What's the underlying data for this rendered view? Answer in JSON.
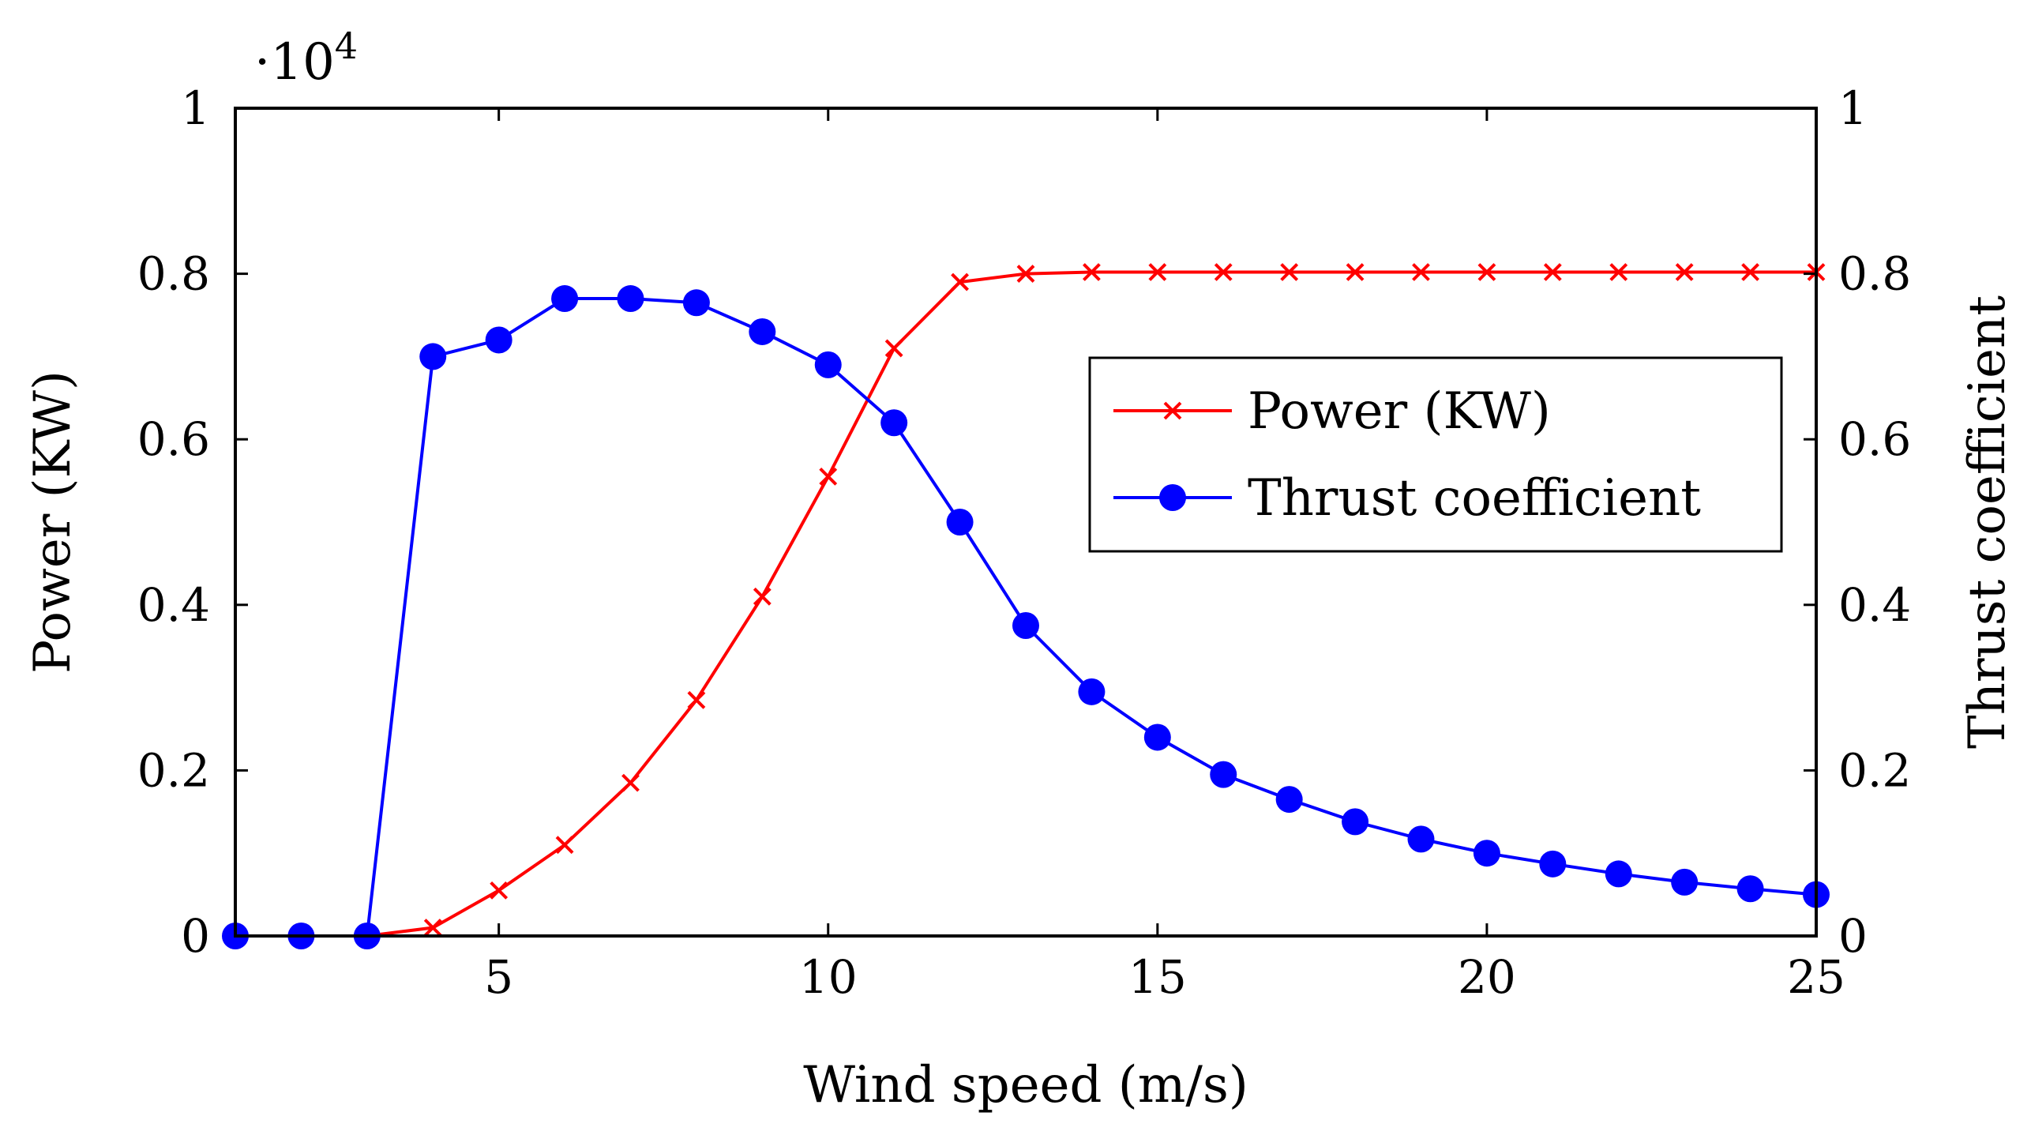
{
  "chart_data": {
    "type": "line",
    "title": "",
    "xlabel": "Wind speed (m/s)",
    "ylabel": "Power (KW)",
    "y2label": "Thrust coefficient",
    "y_multiplier_base": "·10",
    "y_multiplier_exp": "4",
    "xlim": [
      1,
      25
    ],
    "ylim": [
      0,
      1
    ],
    "y2lim": [
      0,
      1
    ],
    "x_ticks": [
      5,
      10,
      15,
      20,
      25
    ],
    "y_ticks": [
      0,
      0.2,
      0.4,
      0.6,
      0.8,
      1
    ],
    "y_tick_labels": [
      "0",
      "0.2",
      "0.4",
      "0.6",
      "0.8",
      "1"
    ],
    "y2_ticks": [
      0,
      0.2,
      0.4,
      0.6,
      0.8,
      1
    ],
    "y2_tick_labels": [
      "0",
      "0.2",
      "0.4",
      "0.6",
      "0.8",
      "1"
    ],
    "grid": false,
    "legend_position": "right-center",
    "x": [
      1,
      2,
      3,
      4,
      5,
      6,
      7,
      8,
      9,
      10,
      11,
      12,
      13,
      14,
      15,
      16,
      17,
      18,
      19,
      20,
      21,
      22,
      23,
      24,
      25
    ],
    "series": [
      {
        "name": "Power (KW)",
        "axis": "left",
        "color": "#ff0000",
        "marker": "x",
        "values": [
          null,
          null,
          0,
          0.01,
          0.055,
          0.11,
          0.185,
          0.285,
          0.41,
          0.555,
          0.71,
          0.79,
          0.8,
          0.802,
          0.802,
          0.802,
          0.802,
          0.802,
          0.802,
          0.802,
          0.802,
          0.802,
          0.802,
          0.802,
          0.802
        ]
      },
      {
        "name": "Thrust coefficient",
        "axis": "right",
        "color": "#0000ff",
        "marker": "circle",
        "values": [
          0,
          0,
          0,
          0.7,
          0.72,
          0.77,
          0.77,
          0.765,
          0.73,
          0.69,
          0.62,
          0.5,
          0.375,
          0.295,
          0.24,
          0.195,
          0.165,
          0.138,
          0.117,
          0.1,
          0.087,
          0.075,
          0.065,
          0.057,
          0.05
        ]
      }
    ]
  }
}
